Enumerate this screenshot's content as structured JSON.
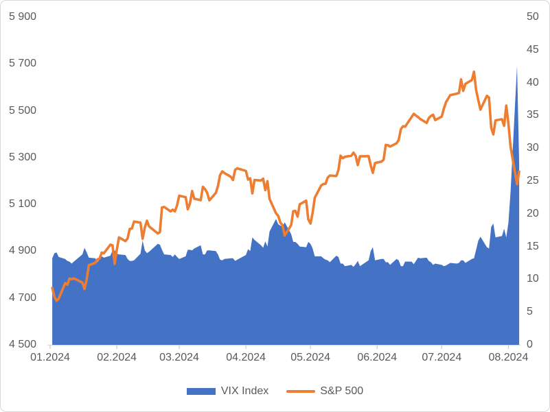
{
  "chart_data": {
    "type": "area",
    "subtype": "combo-area-line",
    "title": "",
    "grid": "off",
    "axis_line_color": "#D9D9D9",
    "tick_color": "#C9C9C9",
    "label_color": "#595959",
    "legend": {
      "position": "bottom",
      "items": [
        "VIX Index",
        "S&P 500"
      ]
    },
    "left_axis": {
      "min": 4500,
      "max": 5900,
      "step": 200,
      "labels": [
        "5 900",
        "5 700",
        "5 500",
        "5 300",
        "5 100",
        "4 900",
        "4 700",
        "4 500"
      ]
    },
    "right_axis": {
      "min": 0,
      "max": 50,
      "step": 5,
      "labels": [
        "50",
        "45",
        "40",
        "35",
        "30",
        "25",
        "20",
        "15",
        "10",
        "5",
        "0"
      ]
    },
    "x": {
      "year": 2024,
      "tick_labels": [
        "01.2024",
        "02.2024",
        "03.2024",
        "04.2024",
        "05.2024",
        "06.2024",
        "07.2024",
        "08.2024"
      ],
      "dates": [
        "01-02",
        "01-03",
        "01-04",
        "01-05",
        "01-08",
        "01-09",
        "01-10",
        "01-11",
        "01-12",
        "01-16",
        "01-17",
        "01-18",
        "01-19",
        "01-22",
        "01-23",
        "01-24",
        "01-25",
        "01-26",
        "01-29",
        "01-30",
        "01-31",
        "02-01",
        "02-02",
        "02-05",
        "02-06",
        "02-07",
        "02-08",
        "02-09",
        "02-12",
        "02-13",
        "02-14",
        "02-15",
        "02-16",
        "02-20",
        "02-21",
        "02-22",
        "02-23",
        "02-26",
        "02-27",
        "02-28",
        "02-29",
        "03-01",
        "03-04",
        "03-05",
        "03-06",
        "03-07",
        "03-08",
        "03-11",
        "03-12",
        "03-13",
        "03-14",
        "03-15",
        "03-18",
        "03-19",
        "03-20",
        "03-21",
        "03-22",
        "03-25",
        "03-26",
        "03-27",
        "03-28",
        "04-01",
        "04-02",
        "04-03",
        "04-04",
        "04-05",
        "04-08",
        "04-09",
        "04-10",
        "04-11",
        "04-12",
        "04-15",
        "04-16",
        "04-17",
        "04-18",
        "04-19",
        "04-22",
        "04-23",
        "04-24",
        "04-25",
        "04-26",
        "04-29",
        "04-30",
        "05-01",
        "05-02",
        "05-03",
        "05-06",
        "05-07",
        "05-08",
        "05-09",
        "05-10",
        "05-13",
        "05-14",
        "05-15",
        "05-16",
        "05-17",
        "05-20",
        "05-21",
        "05-22",
        "05-23",
        "05-24",
        "05-28",
        "05-29",
        "05-30",
        "05-31",
        "06-03",
        "06-04",
        "06-05",
        "06-06",
        "06-07",
        "06-10",
        "06-11",
        "06-12",
        "06-13",
        "06-14",
        "06-17",
        "06-18",
        "06-20",
        "06-21",
        "06-24",
        "06-25",
        "06-26",
        "06-27",
        "06-28",
        "07-01",
        "07-02",
        "07-03",
        "07-05",
        "07-08",
        "07-09",
        "07-10",
        "07-11",
        "07-12",
        "07-15",
        "07-16",
        "07-17",
        "07-18",
        "07-19",
        "07-22",
        "07-23",
        "07-24",
        "07-25",
        "07-26",
        "07-29",
        "07-30",
        "07-31",
        "08-01",
        "08-02",
        "08-05",
        "08-06"
      ]
    },
    "series": [
      {
        "name": "VIX Index",
        "chart_type": "area",
        "axis": "right",
        "color": "#4472C4",
        "values": [
          13.2,
          14.0,
          14.1,
          13.4,
          13.1,
          12.8,
          12.7,
          12.4,
          12.7,
          13.8,
          14.8,
          14.1,
          13.3,
          13.2,
          12.6,
          13.1,
          13.5,
          13.3,
          13.6,
          14.4,
          14.4,
          13.9,
          13.8,
          13.7,
          13.1,
          12.8,
          12.8,
          12.9,
          13.9,
          15.9,
          14.4,
          14.0,
          14.2,
          15.4,
          15.3,
          14.5,
          13.8,
          13.7,
          13.4,
          13.8,
          13.4,
          13.1,
          13.5,
          14.5,
          14.5,
          14.4,
          14.7,
          15.2,
          13.8,
          13.8,
          14.4,
          14.4,
          14.3,
          13.8,
          13.0,
          12.9,
          13.1,
          13.2,
          13.2,
          12.8,
          13.0,
          13.7,
          14.6,
          14.3,
          16.4,
          16.0,
          15.2,
          14.8,
          15.8,
          15.0,
          17.3,
          19.2,
          18.4,
          18.2,
          18.0,
          18.7,
          16.9,
          15.7,
          15.7,
          15.4,
          15.0,
          14.9,
          15.7,
          15.4,
          14.7,
          13.5,
          13.5,
          13.2,
          13.0,
          12.9,
          12.6,
          13.6,
          13.4,
          12.4,
          12.4,
          12.0,
          12.2,
          11.9,
          12.3,
          12.8,
          12.0,
          12.9,
          14.3,
          14.9,
          12.9,
          13.1,
          13.1,
          12.6,
          12.6,
          12.2,
          13.1,
          12.9,
          12.0,
          12.0,
          12.7,
          12.7,
          12.3,
          13.3,
          13.2,
          13.3,
          12.8,
          12.6,
          12.2,
          12.4,
          12.2,
          12.0,
          12.1,
          12.5,
          12.4,
          12.5,
          12.9,
          12.9,
          12.5,
          13.1,
          13.2,
          14.5,
          15.9,
          16.5,
          14.9,
          14.7,
          18.0,
          18.5,
          16.4,
          16.6,
          17.7,
          16.4,
          18.6,
          23.4,
          42.6,
          27.7
        ]
      },
      {
        "name": "S&P 500",
        "chart_type": "line",
        "axis": "left",
        "color": "#ED7D31",
        "values": [
          4743,
          4705,
          4688,
          4697,
          4764,
          4757,
          4783,
          4780,
          4784,
          4766,
          4739,
          4781,
          4840,
          4850,
          4865,
          4869,
          4894,
          4891,
          4928,
          4925,
          4846,
          4906,
          4959,
          4943,
          4954,
          4995,
          4997,
          5027,
          5022,
          4953,
          5001,
          5030,
          5006,
          4976,
          4981,
          5087,
          5089,
          5070,
          5078,
          5070,
          5096,
          5137,
          5131,
          5079,
          5105,
          5157,
          5124,
          5118,
          5175,
          5165,
          5150,
          5117,
          5149,
          5178,
          5225,
          5241,
          5234,
          5218,
          5204,
          5248,
          5254,
          5243,
          5206,
          5211,
          5147,
          5204,
          5202,
          5210,
          5161,
          5199,
          5123,
          5062,
          5051,
          5022,
          5011,
          4967,
          5011,
          5071,
          5072,
          5048,
          5100,
          5116,
          5036,
          5018,
          5064,
          5128,
          5181,
          5187,
          5188,
          5214,
          5223,
          5221,
          5247,
          5308,
          5297,
          5303,
          5308,
          5321,
          5307,
          5268,
          5305,
          5306,
          5267,
          5235,
          5277,
          5283,
          5291,
          5354,
          5353,
          5347,
          5361,
          5375,
          5421,
          5434,
          5432,
          5473,
          5487,
          5473,
          5465,
          5448,
          5469,
          5478,
          5483,
          5460,
          5475,
          5509,
          5537,
          5567,
          5573,
          5576,
          5634,
          5585,
          5615,
          5631,
          5667,
          5588,
          5545,
          5505,
          5564,
          5556,
          5427,
          5399,
          5459,
          5464,
          5436,
          5522,
          5446,
          5346,
          5186,
          5240
        ]
      }
    ]
  }
}
